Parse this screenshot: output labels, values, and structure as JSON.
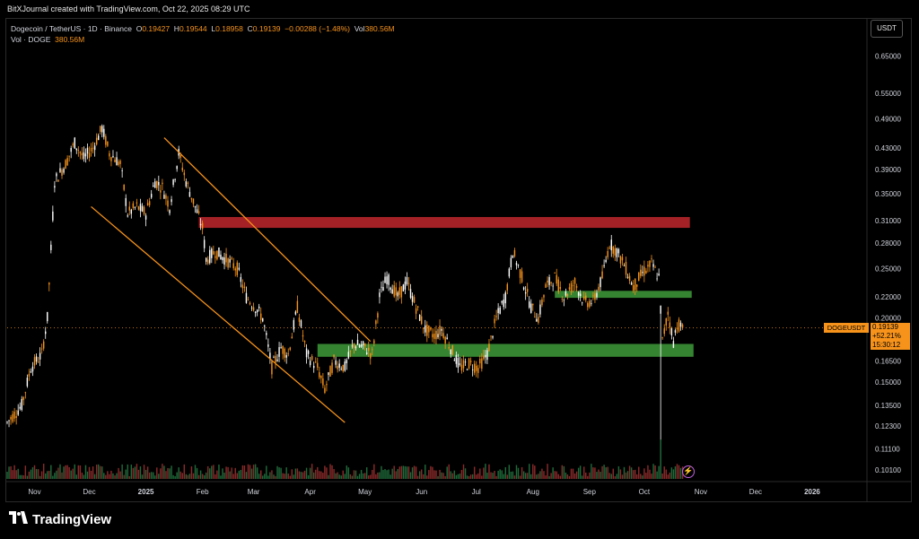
{
  "header": {
    "credit": "BitXJournal created with TradingView.com, Oct 22, 2025 08:29 UTC"
  },
  "legend": {
    "symbol": "Dogecoin / TetherUS · 1D · Binance",
    "open_label": "O",
    "open": "0.19427",
    "high_label": "H",
    "high": "0.19544",
    "low_label": "L",
    "low": "0.18958",
    "close_label": "C",
    "close": "0.19139",
    "change": "−0.00288 (−1.48%)",
    "vol_label": "Vol",
    "vol": "380.56M",
    "vol_row_label": "Vol · DOGE",
    "vol_row_value": "380.56M"
  },
  "currency_button": "USDT",
  "symbol_tag": "DOGEUSDT",
  "price_tag": {
    "price": "0.19139",
    "change_pct": "+52.21%",
    "countdown": "15:30:12"
  },
  "brand": "TradingView",
  "colors": {
    "up": "#ffffff",
    "down": "#f7931a",
    "resistance_zone": "#c1272d",
    "support_zone": "#3e9b3a",
    "channel": "#f7931a",
    "volume_up": "#1f6b3a",
    "volume_down": "#8b2a2a"
  },
  "chart_data": {
    "type": "candlestick",
    "y_axis": {
      "scale": "log",
      "ticks": [
        "0.65000",
        "0.55000",
        "0.49000",
        "0.43000",
        "0.39000",
        "0.35000",
        "0.31000",
        "0.28000",
        "0.25000",
        "0.22000",
        "0.20000",
        "0.18000",
        "0.16500",
        "0.15000",
        "0.13500",
        "0.12300",
        "0.11100",
        "0.10100"
      ],
      "tick_values": [
        0.65,
        0.55,
        0.49,
        0.43,
        0.39,
        0.35,
        0.31,
        0.28,
        0.25,
        0.22,
        0.2,
        0.18,
        0.165,
        0.15,
        0.135,
        0.123,
        0.111,
        0.101
      ],
      "range": [
        0.097,
        0.7
      ]
    },
    "x_axis": {
      "ticks": [
        "Nov",
        "Dec",
        "2025",
        "Feb",
        "Mar",
        "Apr",
        "May",
        "Jun",
        "Jul",
        "Aug",
        "Sep",
        "Oct",
        "Nov",
        "Dec",
        "2026"
      ],
      "tick_dates": [
        "2024-11-01",
        "2024-12-01",
        "2025-01-01",
        "2025-02-01",
        "2025-03-01",
        "2025-04-01",
        "2025-05-01",
        "2025-06-01",
        "2025-07-01",
        "2025-08-01",
        "2025-09-01",
        "2025-10-01",
        "2025-11-01",
        "2025-12-01",
        "2026-01-01"
      ],
      "range": [
        "2024-10-17",
        "2026-01-31"
      ]
    },
    "price_path": [
      [
        "2024-10-17",
        0.125
      ],
      [
        "2024-10-25",
        0.135
      ],
      [
        "2024-10-30",
        0.16
      ],
      [
        "2024-11-05",
        0.17
      ],
      [
        "2024-11-08",
        0.2
      ],
      [
        "2024-11-12",
        0.37
      ],
      [
        "2024-11-18",
        0.4
      ],
      [
        "2024-11-23",
        0.44
      ],
      [
        "2024-11-28",
        0.41
      ],
      [
        "2024-12-03",
        0.43
      ],
      [
        "2024-12-08",
        0.47
      ],
      [
        "2024-12-12",
        0.42
      ],
      [
        "2024-12-18",
        0.4
      ],
      [
        "2024-12-22",
        0.32
      ],
      [
        "2024-12-27",
        0.33
      ],
      [
        "2025-01-01",
        0.32
      ],
      [
        "2025-01-06",
        0.37
      ],
      [
        "2025-01-10",
        0.36
      ],
      [
        "2025-01-14",
        0.33
      ],
      [
        "2025-01-19",
        0.42
      ],
      [
        "2025-01-23",
        0.37
      ],
      [
        "2025-01-28",
        0.33
      ],
      [
        "2025-02-01",
        0.3
      ],
      [
        "2025-02-03",
        0.26
      ],
      [
        "2025-02-08",
        0.27
      ],
      [
        "2025-02-14",
        0.26
      ],
      [
        "2025-02-20",
        0.25
      ],
      [
        "2025-02-25",
        0.22
      ],
      [
        "2025-03-02",
        0.21
      ],
      [
        "2025-03-06",
        0.2
      ],
      [
        "2025-03-11",
        0.16
      ],
      [
        "2025-03-16",
        0.175
      ],
      [
        "2025-03-20",
        0.17
      ],
      [
        "2025-03-25",
        0.21
      ],
      [
        "2025-03-30",
        0.17
      ],
      [
        "2025-04-05",
        0.16
      ],
      [
        "2025-04-09",
        0.145
      ],
      [
        "2025-04-14",
        0.165
      ],
      [
        "2025-04-20",
        0.16
      ],
      [
        "2025-04-25",
        0.178
      ],
      [
        "2025-05-01",
        0.175
      ],
      [
        "2025-05-05",
        0.17
      ],
      [
        "2025-05-09",
        0.22
      ],
      [
        "2025-05-13",
        0.24
      ],
      [
        "2025-05-19",
        0.22
      ],
      [
        "2025-05-24",
        0.235
      ],
      [
        "2025-05-29",
        0.21
      ],
      [
        "2025-06-03",
        0.19
      ],
      [
        "2025-06-08",
        0.185
      ],
      [
        "2025-06-12",
        0.19
      ],
      [
        "2025-06-17",
        0.175
      ],
      [
        "2025-06-22",
        0.16
      ],
      [
        "2025-06-27",
        0.163
      ],
      [
        "2025-07-02",
        0.16
      ],
      [
        "2025-07-07",
        0.17
      ],
      [
        "2025-07-12",
        0.2
      ],
      [
        "2025-07-17",
        0.22
      ],
      [
        "2025-07-21",
        0.27
      ],
      [
        "2025-07-26",
        0.24
      ],
      [
        "2025-07-31",
        0.21
      ],
      [
        "2025-08-04",
        0.2
      ],
      [
        "2025-08-08",
        0.23
      ],
      [
        "2025-08-13",
        0.24
      ],
      [
        "2025-08-18",
        0.22
      ],
      [
        "2025-08-24",
        0.235
      ],
      [
        "2025-08-29",
        0.215
      ],
      [
        "2025-09-03",
        0.215
      ],
      [
        "2025-09-08",
        0.24
      ],
      [
        "2025-09-12",
        0.28
      ],
      [
        "2025-09-16",
        0.27
      ],
      [
        "2025-09-21",
        0.25
      ],
      [
        "2025-09-25",
        0.23
      ],
      [
        "2025-09-30",
        0.245
      ],
      [
        "2025-10-05",
        0.255
      ],
      [
        "2025-10-09",
        0.24
      ],
      [
        "2025-10-11",
        0.18
      ],
      [
        "2025-10-14",
        0.205
      ],
      [
        "2025-10-17",
        0.18
      ],
      [
        "2025-10-19",
        0.195
      ],
      [
        "2025-10-22",
        0.19139
      ]
    ],
    "annotations": {
      "resistance_zone": {
        "from": "2025-01-30",
        "to": "2025-10-26",
        "low": 0.3,
        "high": 0.315
      },
      "support_zone_upper": {
        "from": "2025-08-13",
        "to": "2025-10-27",
        "low": 0.219,
        "high": 0.226
      },
      "support_zone_lower": {
        "from": "2025-04-05",
        "to": "2025-10-28",
        "low": 0.168,
        "high": 0.178
      },
      "channel_upper": [
        [
          "2025-01-11",
          0.45
        ],
        [
          "2025-05-04",
          0.18
        ]
      ],
      "channel_lower": [
        [
          "2024-12-02",
          0.33
        ],
        [
          "2025-04-20",
          0.125
        ]
      ],
      "current_price_line": 0.19139
    }
  }
}
